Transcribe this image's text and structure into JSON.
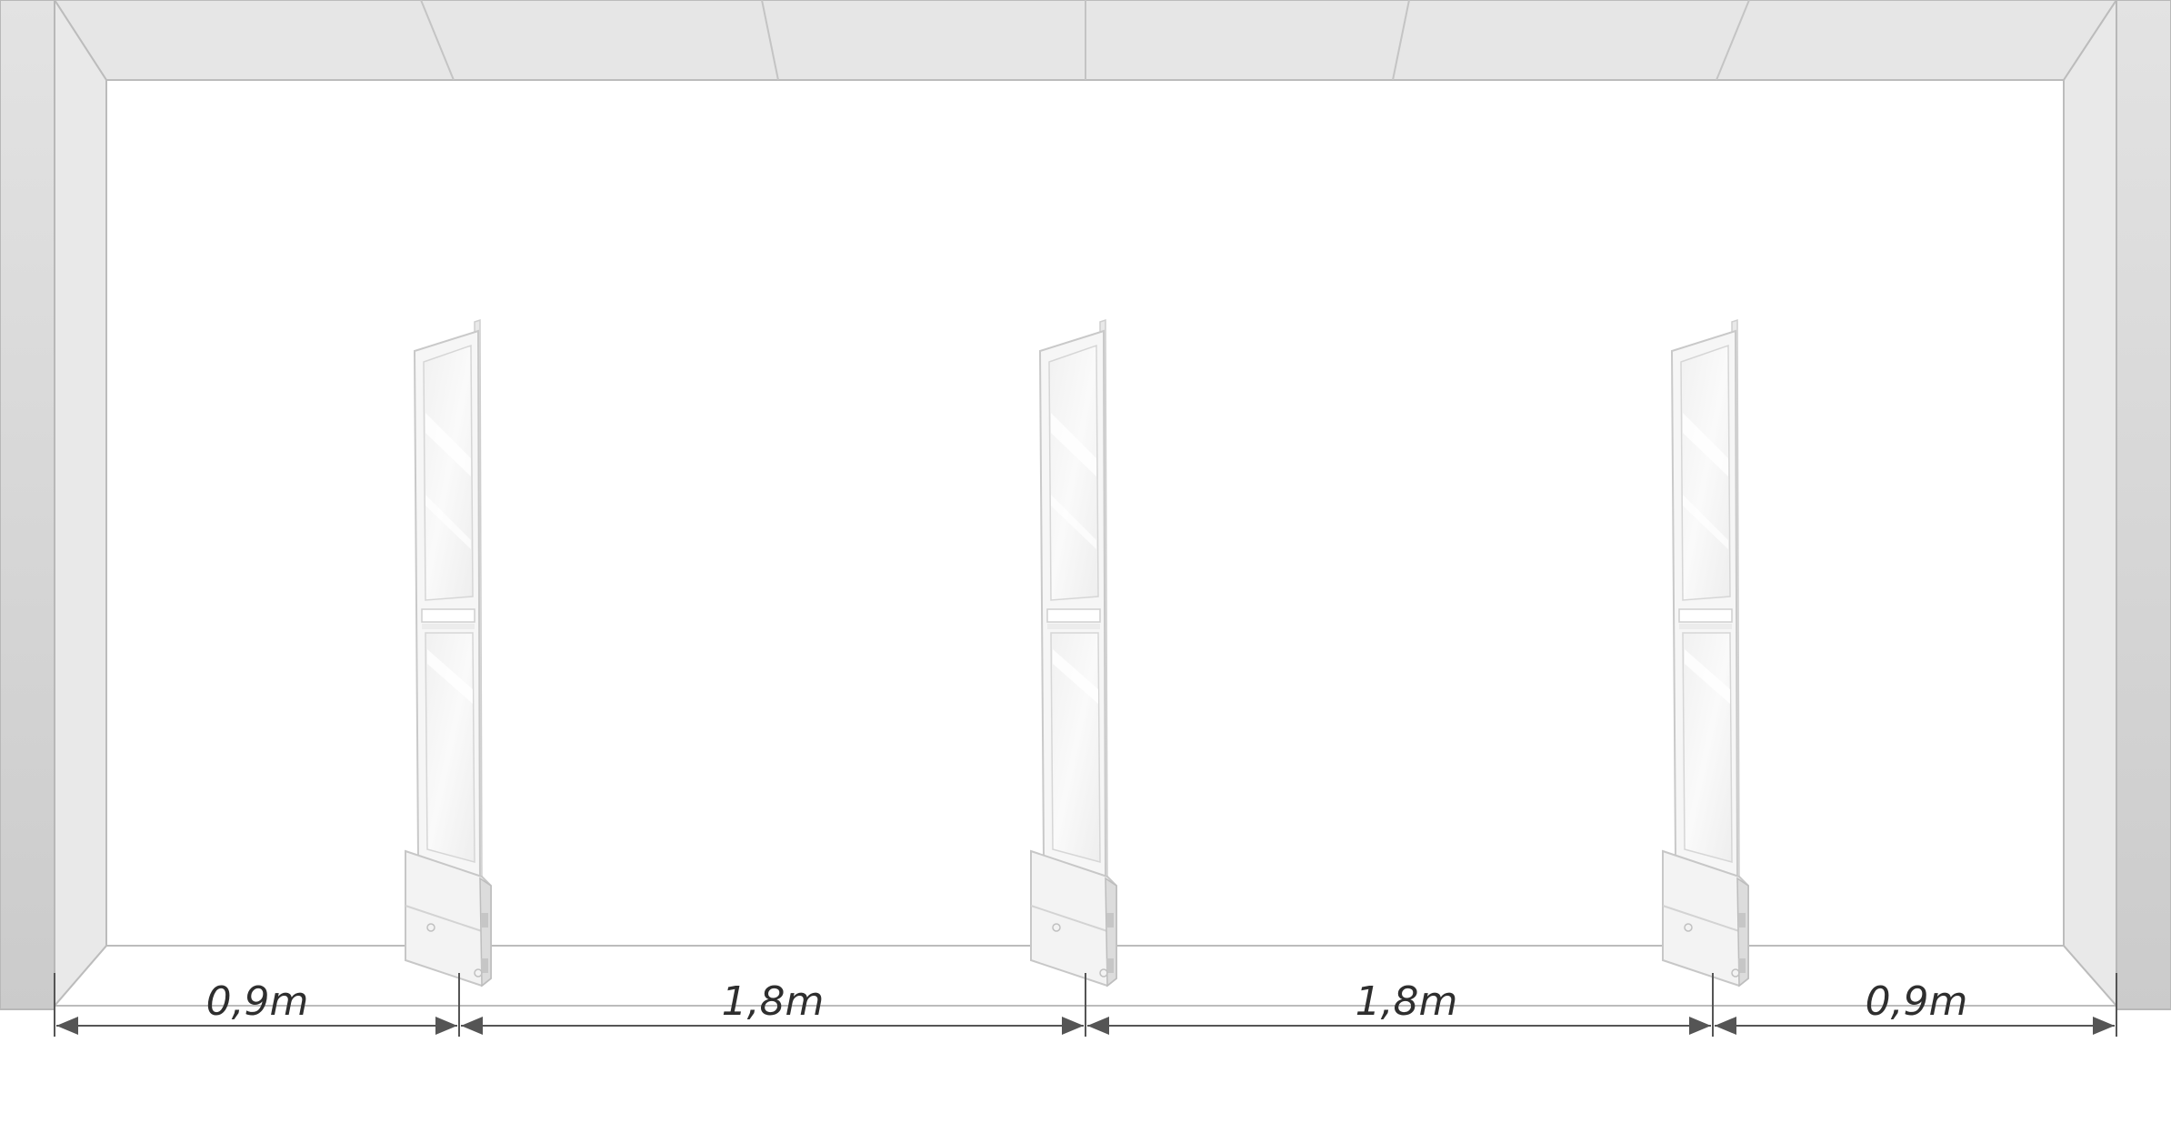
{
  "dimensions": [
    {
      "label": "0,9m",
      "value": 0.9
    },
    {
      "label": "1,8m",
      "value": 1.8
    },
    {
      "label": "1,8m",
      "value": 1.8
    },
    {
      "label": "0,9m",
      "value": 0.9
    }
  ],
  "gate_count": 3,
  "colors": {
    "wall": "#e5e5e5",
    "wall_shadow": "#cccccc",
    "edge": "#b8b8b8",
    "frame": "#f2f2f2",
    "glass": "#f5f5f5",
    "dimension_line": "#555555",
    "label": "#2e2e2e"
  }
}
